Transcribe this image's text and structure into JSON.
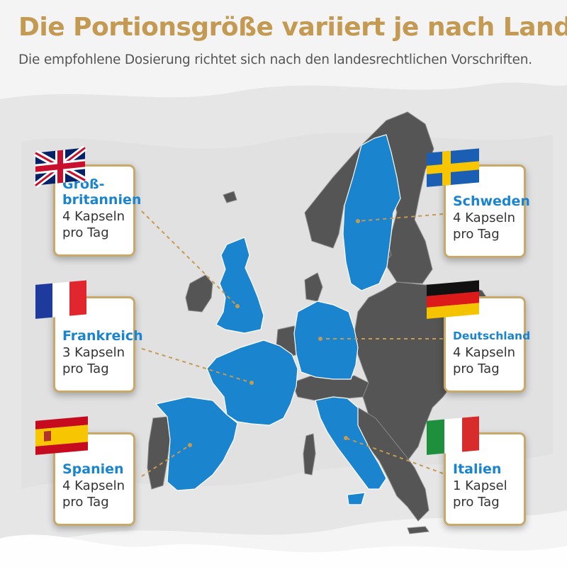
{
  "header": {
    "title": "Die Portionsgröße variiert je nach Land",
    "subtitle": "Die empfohlene Dosierung richtet sich nach den landesrechtlichen Vorschriften."
  },
  "colors": {
    "accent_gold": "#c49a52",
    "country_highlight": "#1a84cf",
    "country_other": "#555555",
    "card_border": "#c8a96a"
  },
  "countries": [
    {
      "name": "Groß-\nbritannien",
      "dose_line1": "4 Kapseln",
      "dose_line2": "pro Tag",
      "flag": "uk-flag-icon"
    },
    {
      "name": "Schweden",
      "dose_line1": "4 Kapseln",
      "dose_line2": "pro Tag",
      "flag": "sweden-flag-icon"
    },
    {
      "name": "Frankreich",
      "dose_line1": "3 Kapseln",
      "dose_line2": "pro Tag",
      "flag": "france-flag-icon"
    },
    {
      "name": "Deutschland",
      "dose_line1": "4 Kapseln",
      "dose_line2": "pro Tag",
      "flag": "germany-flag-icon"
    },
    {
      "name": "Spanien",
      "dose_line1": "4 Kapseln",
      "dose_line2": "pro Tag",
      "flag": "spain-flag-icon"
    },
    {
      "name": "Italien",
      "dose_line1": "1 Kapsel",
      "dose_line2": "pro Tag",
      "flag": "italy-flag-icon"
    }
  ]
}
